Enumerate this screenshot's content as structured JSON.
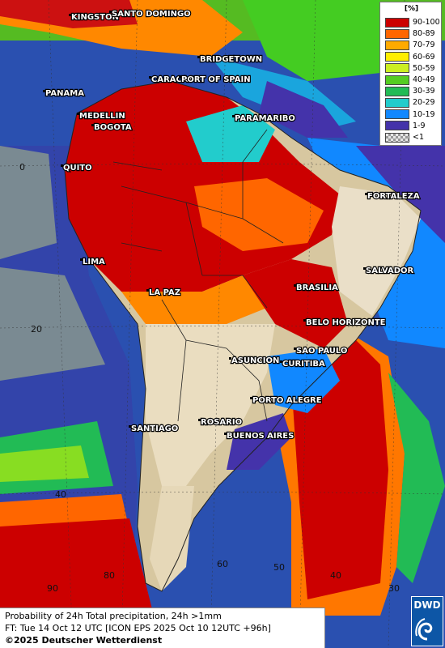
{
  "legend": {
    "unit": "[%]",
    "items": [
      {
        "label": "90-100",
        "color": "#cc0000"
      },
      {
        "label": "80-89",
        "color": "#ff6600"
      },
      {
        "label": "70-79",
        "color": "#ffaa00"
      },
      {
        "label": "60-69",
        "color": "#ffee00"
      },
      {
        "label": "50-59",
        "color": "#ccee22"
      },
      {
        "label": "40-49",
        "color": "#55cc22"
      },
      {
        "label": "30-39",
        "color": "#22bb55"
      },
      {
        "label": "20-29",
        "color": "#22cccc"
      },
      {
        "label": "10-19",
        "color": "#1188ff"
      },
      {
        "label": "1-9",
        "color": "#4433aa"
      },
      {
        "label": "<1",
        "color": "#c8c8c8"
      }
    ]
  },
  "cities": [
    "KINGSTON",
    "SANTO DOMINGO",
    "BRIDGETOWN",
    "PANAMA",
    "CARACAS",
    "PORT OF SPAIN",
    "MEDELLIN",
    "BOGOTA",
    "PARAMARIBO",
    "QUITO",
    "FORTALEZA",
    "SALVADOR",
    "LIMA",
    "LA PAZ",
    "BRASILIA",
    "BELO HORIZONTE",
    "SAO PAULO",
    "CURITIBA",
    "ASUNCION",
    "PORTO ALEGRE",
    "SANTIAGO",
    "ROSARIO",
    "BUENOS AIRES"
  ],
  "grid_labels": [
    "0",
    "20",
    "40",
    "90",
    "80",
    "60",
    "50",
    "40",
    "30"
  ],
  "footer": {
    "line1": "Probability of 24h Total precipitation, 24h >1mm",
    "line2": "FT: Tue 14 Oct 12 UTC [ICON EPS 2025 Oct 10 12UTC +96h]",
    "line3": "©2025 Deutscher Wetterdienst"
  },
  "logo": {
    "text": "DWD"
  }
}
